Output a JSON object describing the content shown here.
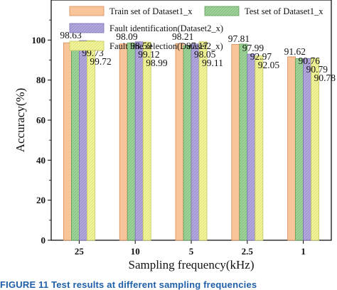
{
  "caption": "FIGURE 11   Test results at different sampling frequencies",
  "chart_data": {
    "type": "bar",
    "xlabel": "Sampling frequency(kHz)",
    "ylabel": "Accuracy(%)",
    "categories": [
      "25",
      "10",
      "5",
      "2.5",
      "1"
    ],
    "ylim": [
      0,
      120
    ],
    "yticks": [
      0,
      20,
      40,
      60,
      80,
      100
    ],
    "legend_position": "top",
    "grid": false,
    "series": [
      {
        "name": "Train set of Dataset1_x",
        "values": [
          98.63,
          98.09,
          98.21,
          97.81,
          91.62
        ],
        "color": "#f8c59a",
        "edge": "#d98a55",
        "hatch": false
      },
      {
        "name": "Test set of Dataset1_x",
        "values": [
          99.16,
          98.59,
          97.17,
          97.99,
          90.76
        ],
        "color": "#9fd39a",
        "edge": "#5e9f58",
        "hatch": true
      },
      {
        "name": "Fault identification(Dataset2_x)",
        "values": [
          99.73,
          99.12,
          98.05,
          92.97,
          90.79
        ],
        "color": "#b2a8dc",
        "edge": "#7a6fb5",
        "hatch": true
      },
      {
        "name": "Fault line selection(Dataset2_x)",
        "values": [
          99.72,
          98.99,
          99.11,
          92.05,
          90.78
        ],
        "color": "#f2f49a",
        "edge": "#c4c65c",
        "hatch": true
      }
    ]
  }
}
